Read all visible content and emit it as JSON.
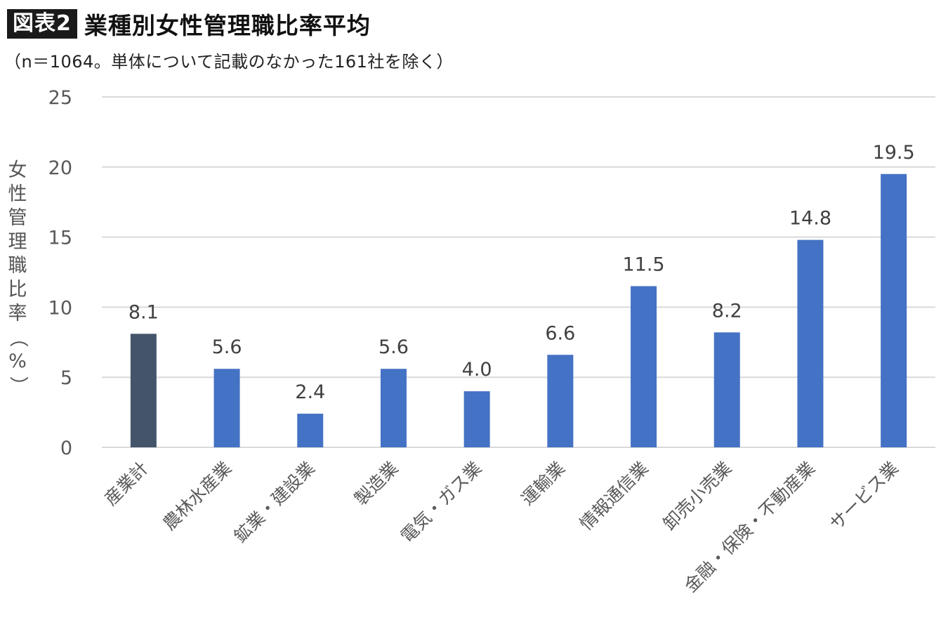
{
  "header": {
    "badge": "図表2",
    "title": "業種別女性管理職比率平均",
    "subtitle": "（n＝1064。単体について記載のなかった161社を除く）"
  },
  "colors": {
    "total": "#44546A",
    "series": "#4472C4",
    "grid": "#D9D9D9"
  },
  "chart_data": {
    "type": "bar",
    "title": "業種別女性管理職比率平均",
    "ylabel": "女性管理職比率（%）",
    "xlabel": "",
    "ylim": [
      0,
      25
    ],
    "yticks": [
      0,
      5,
      10,
      15,
      20,
      25
    ],
    "grid": true,
    "categories": [
      "産業計",
      "農林水産業",
      "鉱業・建設業",
      "製造業",
      "電気・ガス業",
      "運輸業",
      "情報通信業",
      "卸売小売業",
      "金融・保険・不動産業",
      "サービス業"
    ],
    "values": [
      8.1,
      5.6,
      2.4,
      5.6,
      4.0,
      6.6,
      11.5,
      8.2,
      14.8,
      19.5
    ],
    "data_labels": [
      "8.1",
      "5.6",
      "2.4",
      "5.6",
      "4.0",
      "6.6",
      "11.5",
      "8.2",
      "14.8",
      "19.5"
    ],
    "highlight_index": 0
  }
}
